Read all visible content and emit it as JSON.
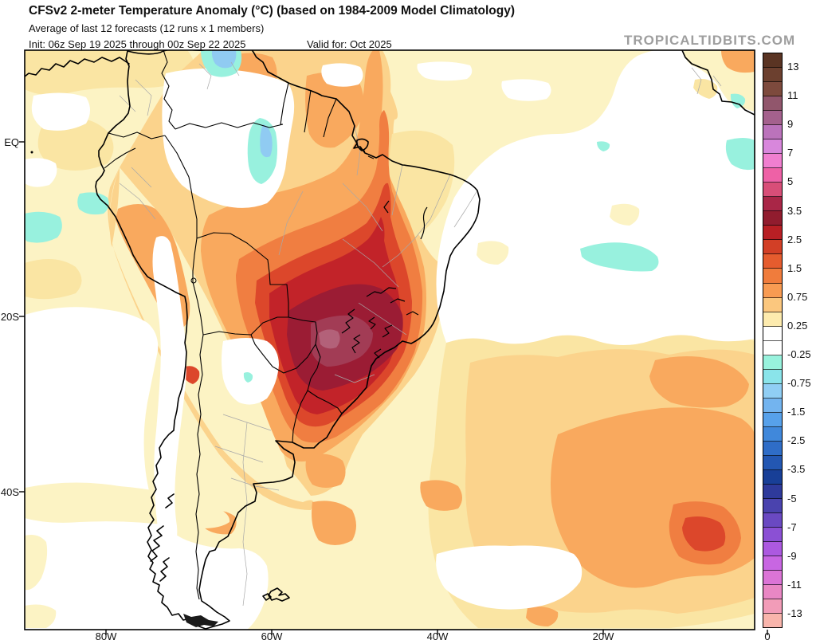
{
  "header": {
    "title": "CFSv2 2-meter Temperature Anomaly (°C) (based on 1984-2009 Model Climatology)",
    "subtitle": "Average of last 12 forecasts (12 runs x 1 members)",
    "init_text": "Init: 06z Sep 19 2025 through 00z Sep 22 2025",
    "valid_text": "Valid for: Oct 2025",
    "watermark": "TROPICALTIDBITS.COM"
  },
  "map": {
    "lat_labels": [
      "EQ",
      "20S",
      "40S"
    ],
    "lon_labels": [
      "80W",
      "60W",
      "40W",
      "20W",
      "0"
    ]
  },
  "colorbar": {
    "units": "°C",
    "tick_labels": [
      "13",
      "11",
      "9",
      "7",
      "5",
      "3.5",
      "2.5",
      "1.5",
      "0.75",
      "0.25",
      "-0.25",
      "-0.75",
      "-1.5",
      "-2.5",
      "-3.5",
      "-5",
      "-7",
      "-9",
      "-11",
      "-13"
    ],
    "segments": [
      "#5A3423",
      "#6C402F",
      "#7D4A3D",
      "#91566C",
      "#A4618D",
      "#BB73BB",
      "#D887DC",
      "#F07FD0",
      "#EE61A6",
      "#D84E78",
      "#A92647",
      "#911C2E",
      "#B81F24",
      "#D23F26",
      "#E55C2E",
      "#F07C3C",
      "#F89B52",
      "#FBC77E",
      "#FDEBAE",
      "#FFFFFF",
      "#FFFFFF",
      "#98F2DD",
      "#8AE4EA",
      "#90CEF4",
      "#73B4EF",
      "#57A1EA",
      "#4088DB",
      "#2F6DC7",
      "#2357B2",
      "#183F97",
      "#2E3A9B",
      "#4A43AE",
      "#6A49C2",
      "#8B50D4",
      "#AC59E0",
      "#C866E2",
      "#DB74D6",
      "#E987C4",
      "#F29CB8",
      "#F9B5AC"
    ]
  },
  "field_palette": {
    "near_zero_white": "#FFFFFF",
    "pale_yellow_0.25_0.5": "#FCF3C4",
    "yellow_0.5_0.75": "#FAE5A3",
    "tan_0.75_1.5": "#FBD38C",
    "orange_1.5_2.5": "#F9A95E",
    "deep_orange_2.5_3": "#F07E41",
    "red_3_3.5": "#DC472B",
    "bright_red_3.5": "#C22329",
    "maroon_3.5_4.25": "#9B1C34",
    "mauve_4.25_5": "#A23C55",
    "rose_5_plus": "#B36179",
    "aqua_neg": "#98F1DE",
    "light_blue_neg": "#90CBF2"
  }
}
